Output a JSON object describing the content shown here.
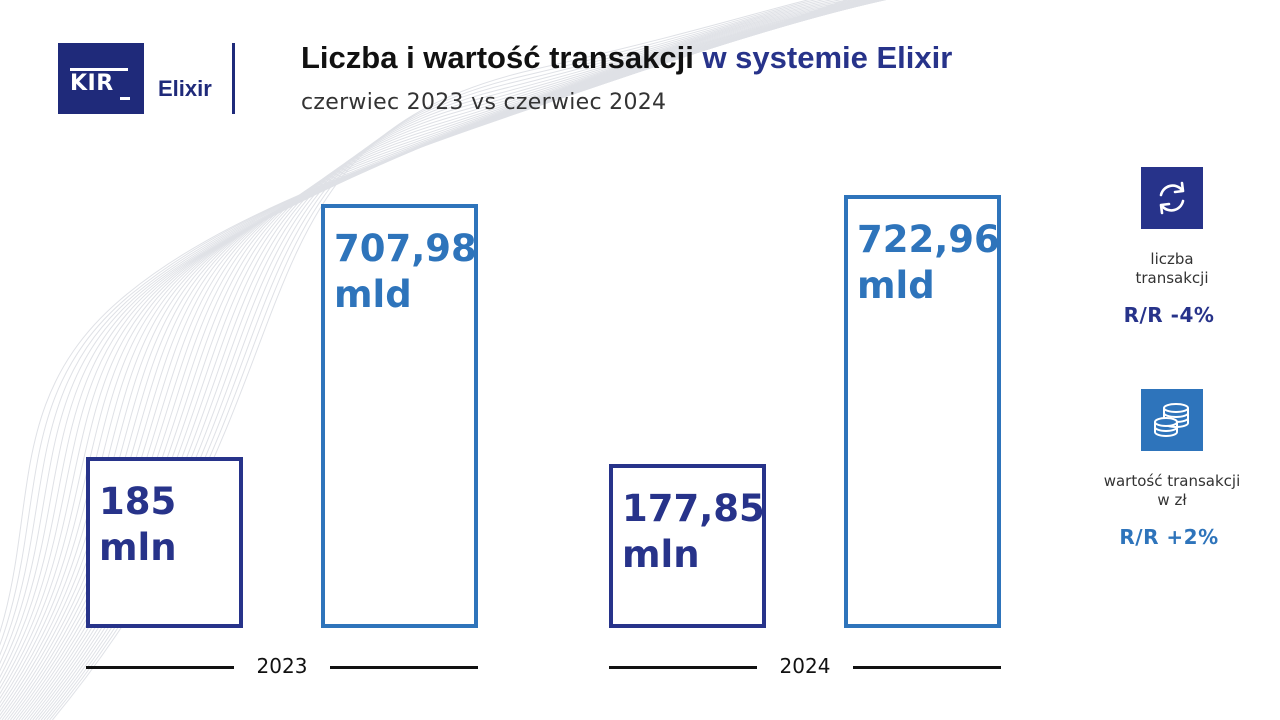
{
  "header": {
    "logo_kir": "KIR",
    "logo_elixir": "Elixir",
    "title_main": "Liczba i wartość transakcji",
    "title_accent": "w systemie Elixir",
    "subtitle": "czerwiec 2023 vs czerwiec 2024"
  },
  "colors": {
    "count": "#27338a",
    "value": "#2e74bb"
  },
  "chart_data": {
    "type": "bar",
    "categories": [
      "2023",
      "2024"
    ],
    "series": [
      {
        "values": [
          185,
          177.85
        ],
        "labels": [
          "185 mln",
          "177,85 mln"
        ],
        "color": "#27338a"
      },
      {
        "values": [
          707.98,
          722.96
        ],
        "labels": [
          "707,98 mld",
          "722,96 mld"
        ],
        "color": "#2e74bb"
      }
    ],
    "title": "Liczba i wartość transakcji w systemie Elixir",
    "subtitle": "czerwiec 2023 vs czerwiec 2024"
  },
  "legend": [
    {
      "icon": "exchange-arrows-icon",
      "text": "liczba transakcji",
      "change": "R/R -4%"
    },
    {
      "icon": "coin-stack-icon",
      "text": "wartość transakcji w zł",
      "change": "R/R +2%"
    }
  ]
}
